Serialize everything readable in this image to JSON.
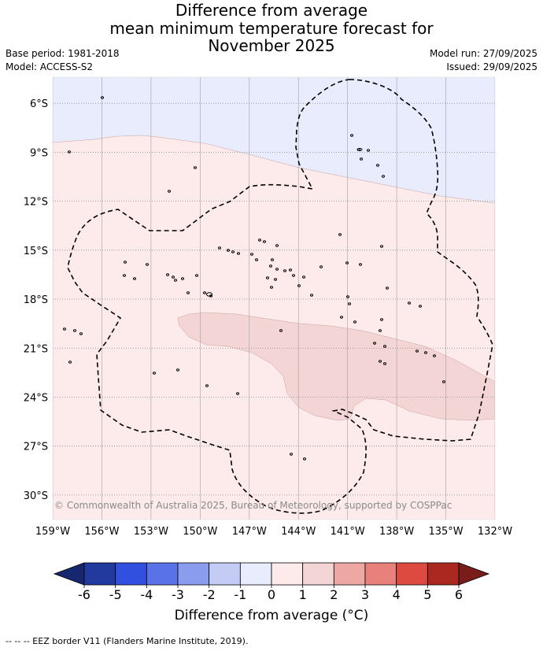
{
  "header": {
    "title_line1": "Difference from average",
    "title_line2": "mean minimum temperature forecast for",
    "title_line3": "November 2025",
    "base_period": "Base period: 1981-2018",
    "model": "Model: ACCESS-S2",
    "model_run": "Model run: 27/09/2025",
    "issued": "Issued: 29/09/2025"
  },
  "map": {
    "lat_labels": [
      "6°S",
      "9°S",
      "12°S",
      "15°S",
      "18°S",
      "21°S",
      "24°S",
      "27°S",
      "30°S"
    ],
    "lon_labels": [
      "159°W",
      "156°W",
      "153°W",
      "150°W",
      "147°W",
      "144°W",
      "141°W",
      "138°W",
      "135°W",
      "132°W"
    ],
    "lat_values": [
      -6,
      -9,
      -12,
      -15,
      -18,
      -21,
      -24,
      -27,
      -30
    ],
    "lon_values": [
      -159,
      -156,
      -153,
      -150,
      -147,
      -144,
      -141,
      -138,
      -135,
      -132
    ],
    "extent": {
      "lon_min": -159,
      "lon_max": -132,
      "lat_max": -4.4,
      "lat_min": -31.5
    },
    "copyright": "© Commonwealth of Australia 2025, Bureau of Meteorology, supported by COSPPac",
    "colors": {
      "band_neg1_0": "#e8ecfc",
      "band_0_1": "#fcebea",
      "band_1_2": "#f4d5d5",
      "grid": "#999999",
      "eez": "#000000"
    }
  },
  "colorbar": {
    "ticks": [
      "-6",
      "-5",
      "-4",
      "-3",
      "-2",
      "-1",
      "0",
      "1",
      "2",
      "3",
      "4",
      "5",
      "6"
    ],
    "colors": [
      "#223a9e",
      "#3150e0",
      "#5a72e8",
      "#8a9cee",
      "#c4cbf5",
      "#e8ecfc",
      "#fcebea",
      "#f4d5d5",
      "#eea8a4",
      "#e8817b",
      "#dd4a40",
      "#ab2820"
    ],
    "extend_low_color": "#16276f",
    "extend_high_color": "#791d1a",
    "label": "Difference from average (°C)"
  },
  "footnote": "-- -- -- EEZ border V11 (Flanders Marine Institute, 2019)."
}
